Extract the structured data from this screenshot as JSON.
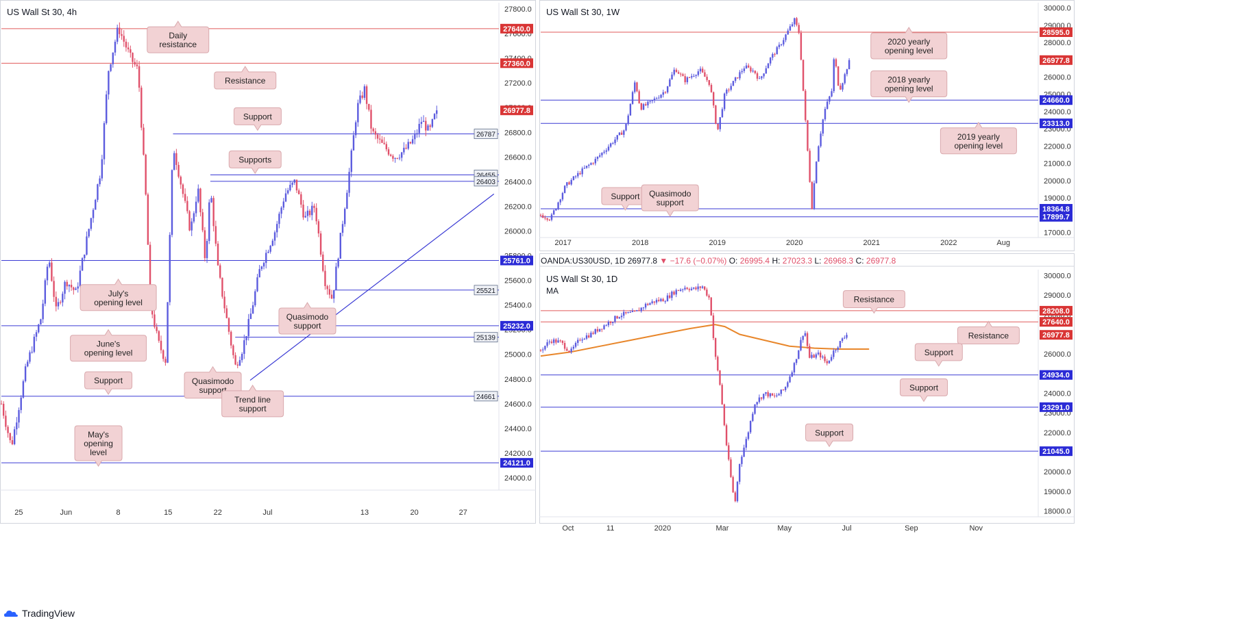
{
  "branding": {
    "name": "TradingView",
    "logo_icon": "tradingview-cloud-icon"
  },
  "colors": {
    "up_candle": "#5b5bde",
    "down_candle": "#e0506a",
    "support_line": "#3a3ad4",
    "resistance_line": "#e05a5a",
    "ma_line": "#e8862a",
    "support_badge": "#2b2bd6",
    "resistance_badge": "#d93535",
    "price_badge": "#d93535",
    "callout_fill": "#f2d2d4",
    "callout_border": "#d9a9ad",
    "gray_badge_fill": "#eef0f5",
    "axis_text": "#333333"
  },
  "chart_data": [
    {
      "id": "h4",
      "type": "candlestick",
      "title": "US Wall St 30, 4h",
      "ylim": [
        23900,
        27850
      ],
      "y_ticks": [
        24000,
        24200,
        24400,
        24600,
        24800,
        25000,
        25200,
        25400,
        25600,
        25800,
        26000,
        26200,
        26400,
        26600,
        26800,
        27000,
        27200,
        27400,
        27600,
        27800
      ],
      "x_ticks": [
        {
          "label": "25",
          "t": 0.035
        },
        {
          "label": "Jun",
          "t": 0.13
        },
        {
          "label": "8",
          "t": 0.235
        },
        {
          "label": "15",
          "t": 0.335
        },
        {
          "label": "22",
          "t": 0.435
        },
        {
          "label": "Jul",
          "t": 0.535
        },
        {
          "label": "13",
          "t": 0.73
        },
        {
          "label": "20",
          "t": 0.83
        },
        {
          "label": "27",
          "t": 0.928
        }
      ],
      "price_path": [
        [
          0.0,
          24600
        ],
        [
          0.02,
          24250
        ],
        [
          0.05,
          24900
        ],
        [
          0.08,
          25300
        ],
        [
          0.095,
          25800
        ],
        [
          0.11,
          25350
        ],
        [
          0.13,
          25600
        ],
        [
          0.15,
          25500
        ],
        [
          0.175,
          26000
        ],
        [
          0.2,
          26500
        ],
        [
          0.215,
          27300
        ],
        [
          0.235,
          27650
        ],
        [
          0.26,
          27400
        ],
        [
          0.275,
          27300
        ],
        [
          0.29,
          26300
        ],
        [
          0.3,
          25400
        ],
        [
          0.315,
          25100
        ],
        [
          0.33,
          24950
        ],
        [
          0.345,
          26700
        ],
        [
          0.36,
          26400
        ],
        [
          0.38,
          26000
        ],
        [
          0.395,
          26350
        ],
        [
          0.41,
          25750
        ],
        [
          0.42,
          26350
        ],
        [
          0.435,
          25700
        ],
        [
          0.45,
          25350
        ],
        [
          0.47,
          24900
        ],
        [
          0.485,
          25050
        ],
        [
          0.5,
          25300
        ],
        [
          0.52,
          25700
        ],
        [
          0.55,
          26000
        ],
        [
          0.57,
          26300
        ],
        [
          0.59,
          26400
        ],
        [
          0.61,
          26100
        ],
        [
          0.63,
          26200
        ],
        [
          0.65,
          25600
        ],
        [
          0.665,
          25450
        ],
        [
          0.68,
          25900
        ],
        [
          0.7,
          26500
        ],
        [
          0.715,
          27000
        ],
        [
          0.73,
          27150
        ],
        [
          0.745,
          26800
        ],
        [
          0.765,
          26700
        ],
        [
          0.79,
          26600
        ],
        [
          0.81,
          26650
        ],
        [
          0.83,
          26750
        ],
        [
          0.845,
          26900
        ],
        [
          0.86,
          26800
        ],
        [
          0.875,
          26977.8
        ]
      ],
      "hlines": [
        {
          "value": 27640,
          "label": "27640.0",
          "kind": "resistance",
          "x_start": 0.0
        },
        {
          "value": 27360,
          "label": "27360.0",
          "kind": "resistance",
          "x_start": 0.0
        },
        {
          "value": 26787,
          "label": "26787",
          "kind": "support",
          "x_start": 0.345
        },
        {
          "value": 26455,
          "label": "26455",
          "kind": "support",
          "x_start": 0.42
        },
        {
          "value": 26403,
          "label": "26403",
          "kind": "support",
          "x_start": 0.42
        },
        {
          "value": 25761,
          "label": "25761.0",
          "kind": "support",
          "x_start": 0.0
        },
        {
          "value": 25521,
          "label": "25521",
          "kind": "support",
          "x_start": 0.67
        },
        {
          "value": 25232,
          "label": "25232.0",
          "kind": "support",
          "x_start": 0.0
        },
        {
          "value": 25139,
          "label": "25139",
          "kind": "support",
          "x_start": 0.47
        },
        {
          "value": 24661,
          "label": "24661",
          "kind": "support",
          "x_start": 0.0
        },
        {
          "value": 24121,
          "label": "24121.0",
          "kind": "support",
          "x_start": 0.0
        }
      ],
      "price_label": "26977.8",
      "trendline": {
        "x1": 0.5,
        "y1": 24790,
        "x2": 0.99,
        "y2": 26300
      },
      "annotations": [
        {
          "text": [
            "Daily",
            "resistance"
          ],
          "x": 0.355,
          "value": 27550,
          "pointer": "up"
        },
        {
          "text": [
            "Resistance"
          ],
          "x": 0.49,
          "value": 27220,
          "pointer": "up"
        },
        {
          "text": [
            "Support"
          ],
          "x": 0.515,
          "value": 26930,
          "pointer": "down"
        },
        {
          "text": [
            "Supports"
          ],
          "x": 0.51,
          "value": 26580,
          "pointer": "down"
        },
        {
          "text": [
            "July's",
            "opening level"
          ],
          "x": 0.235,
          "value": 25460,
          "pointer": "up"
        },
        {
          "text": [
            "Quasimodo",
            "support"
          ],
          "x": 0.615,
          "value": 25270,
          "pointer": "up"
        },
        {
          "text": [
            "June's",
            "opening level"
          ],
          "x": 0.215,
          "value": 25050,
          "pointer": "up"
        },
        {
          "text": [
            "Quasimodo",
            "support"
          ],
          "x": 0.425,
          "value": 24750,
          "pointer": "up"
        },
        {
          "text": [
            "Support"
          ],
          "x": 0.215,
          "value": 24790,
          "pointer": "down"
        },
        {
          "text": [
            "Trend line",
            "support"
          ],
          "x": 0.505,
          "value": 24600,
          "pointer": "up"
        },
        {
          "text": [
            "May's",
            "opening",
            "level"
          ],
          "x": 0.195,
          "value": 24280,
          "pointer": "down"
        }
      ]
    },
    {
      "id": "w1",
      "type": "candlestick",
      "title": "US Wall St 30, 1W",
      "ylim": [
        16700,
        30300
      ],
      "y_ticks": [
        17000,
        18000,
        19000,
        20000,
        21000,
        22000,
        23000,
        24000,
        25000,
        26000,
        27000,
        28000,
        29000,
        30000
      ],
      "x_ticks": [
        {
          "label": "2017",
          "t": 0.045
        },
        {
          "label": "2018",
          "t": 0.2
        },
        {
          "label": "2019",
          "t": 0.355
        },
        {
          "label": "2020",
          "t": 0.51
        },
        {
          "label": "2021",
          "t": 0.665
        },
        {
          "label": "2022",
          "t": 0.82
        },
        {
          "label": "Aug",
          "t": 0.93
        }
      ],
      "price_path": [
        [
          0.0,
          18000
        ],
        [
          0.02,
          17800
        ],
        [
          0.05,
          19700
        ],
        [
          0.08,
          20500
        ],
        [
          0.11,
          21200
        ],
        [
          0.14,
          22100
        ],
        [
          0.17,
          23000
        ],
        [
          0.19,
          25800
        ],
        [
          0.2,
          24200
        ],
        [
          0.22,
          24500
        ],
        [
          0.25,
          25200
        ],
        [
          0.27,
          26500
        ],
        [
          0.29,
          25800
        ],
        [
          0.32,
          26400
        ],
        [
          0.34,
          25600
        ],
        [
          0.355,
          22800
        ],
        [
          0.37,
          25000
        ],
        [
          0.39,
          25800
        ],
        [
          0.41,
          26600
        ],
        [
          0.43,
          26300
        ],
        [
          0.44,
          25800
        ],
        [
          0.46,
          27000
        ],
        [
          0.48,
          27800
        ],
        [
          0.5,
          28800
        ],
        [
          0.51,
          29300
        ],
        [
          0.52,
          28500
        ],
        [
          0.53,
          24200
        ],
        [
          0.545,
          18400
        ],
        [
          0.555,
          21500
        ],
        [
          0.57,
          24000
        ],
        [
          0.585,
          25200
        ],
        [
          0.59,
          27300
        ],
        [
          0.6,
          25200
        ],
        [
          0.61,
          26000
        ],
        [
          0.62,
          26977.8
        ]
      ],
      "hlines": [
        {
          "value": 28595,
          "label": "28595.0",
          "kind": "resistance",
          "x_start": 0.0
        },
        {
          "value": 24660,
          "label": "24660.0",
          "kind": "support",
          "x_start": 0.0
        },
        {
          "value": 23313,
          "label": "23313.0",
          "kind": "support",
          "x_start": 0.0
        },
        {
          "value": 18364.8,
          "label": "18364.8",
          "kind": "support",
          "x_start": 0.0
        },
        {
          "value": 17899.7,
          "label": "17899.7",
          "kind": "support",
          "x_start": 0.0
        }
      ],
      "price_label": "26977.8",
      "annotations": [
        {
          "text": [
            "2020 yearly",
            "opening level"
          ],
          "x": 0.74,
          "value": 27800,
          "pointer": "up"
        },
        {
          "text": [
            "2018 yearly",
            "opening level"
          ],
          "x": 0.74,
          "value": 25600,
          "pointer": "down"
        },
        {
          "text": [
            "2019 yearly",
            "opening level"
          ],
          "x": 0.88,
          "value": 22300,
          "pointer": "up"
        },
        {
          "text": [
            "Support"
          ],
          "x": 0.17,
          "value": 19100,
          "pointer": "down"
        },
        {
          "text": [
            "Quasimodo",
            "support"
          ],
          "x": 0.26,
          "value": 19000,
          "pointer": "down"
        }
      ]
    },
    {
      "id": "d1",
      "type": "candlestick",
      "title": "US Wall St 30, 1D",
      "series_label": "MA",
      "info_bar": {
        "symbol": "OANDA:US30USD, 1D",
        "price": "26977.8",
        "change": "−17.6 (−0.07%)",
        "o_label": "O:",
        "o": "26995.4",
        "h_label": "H:",
        "h": "27023.3",
        "l_label": "L:",
        "l": "26968.3",
        "c_label": "C:",
        "c": "26977.8"
      },
      "ylim": [
        17700,
        30300
      ],
      "y_ticks": [
        18000,
        19000,
        20000,
        21000,
        22000,
        23000,
        24000,
        25000,
        26000,
        27000,
        28000,
        29000,
        30000
      ],
      "x_ticks": [
        {
          "label": "Oct",
          "t": 0.055
        },
        {
          "label": "11",
          "t": 0.14
        },
        {
          "label": "2020",
          "t": 0.245
        },
        {
          "label": "Mar",
          "t": 0.365
        },
        {
          "label": "May",
          "t": 0.49
        },
        {
          "label": "Jul",
          "t": 0.615
        },
        {
          "label": "Sep",
          "t": 0.745
        },
        {
          "label": "Nov",
          "t": 0.875
        }
      ],
      "price_path": [
        [
          0.0,
          26200
        ],
        [
          0.02,
          26700
        ],
        [
          0.04,
          26600
        ],
        [
          0.06,
          26100
        ],
        [
          0.08,
          26800
        ],
        [
          0.1,
          27000
        ],
        [
          0.13,
          27500
        ],
        [
          0.16,
          28000
        ],
        [
          0.19,
          28100
        ],
        [
          0.21,
          28500
        ],
        [
          0.23,
          28700
        ],
        [
          0.25,
          28800
        ],
        [
          0.27,
          29200
        ],
        [
          0.29,
          29400
        ],
        [
          0.31,
          29300
        ],
        [
          0.325,
          29450
        ],
        [
          0.34,
          28800
        ],
        [
          0.35,
          26000
        ],
        [
          0.36,
          24500
        ],
        [
          0.375,
          21000
        ],
        [
          0.39,
          18300
        ],
        [
          0.4,
          20500
        ],
        [
          0.415,
          21800
        ],
        [
          0.43,
          23500
        ],
        [
          0.45,
          24000
        ],
        [
          0.47,
          23800
        ],
        [
          0.49,
          24200
        ],
        [
          0.51,
          25500
        ],
        [
          0.53,
          27300
        ],
        [
          0.54,
          25800
        ],
        [
          0.56,
          26000
        ],
        [
          0.575,
          25500
        ],
        [
          0.59,
          26200
        ],
        [
          0.605,
          26700
        ],
        [
          0.615,
          26977.8
        ]
      ],
      "ma_path": [
        [
          0.0,
          25900
        ],
        [
          0.06,
          26100
        ],
        [
          0.12,
          26400
        ],
        [
          0.18,
          26700
        ],
        [
          0.24,
          27000
        ],
        [
          0.3,
          27300
        ],
        [
          0.35,
          27500
        ],
        [
          0.37,
          27400
        ],
        [
          0.4,
          27000
        ],
        [
          0.45,
          26700
        ],
        [
          0.5,
          26400
        ],
        [
          0.55,
          26300
        ],
        [
          0.6,
          26250
        ],
        [
          0.66,
          26250
        ]
      ],
      "hlines": [
        {
          "value": 28208,
          "label": "28208.0",
          "kind": "resistance",
          "x_start": 0.0
        },
        {
          "value": 27640,
          "label": "27640.0",
          "kind": "resistance",
          "x_start": 0.0
        },
        {
          "value": 24934,
          "label": "24934.0",
          "kind": "support",
          "x_start": 0.0
        },
        {
          "value": 23291,
          "label": "23291.0",
          "kind": "support",
          "x_start": 0.0
        },
        {
          "value": 21045,
          "label": "21045.0",
          "kind": "support",
          "x_start": 0.0
        }
      ],
      "price_label": "26977.8",
      "annotations": [
        {
          "text": [
            "Resistance"
          ],
          "x": 0.67,
          "value": 28800,
          "pointer": "down"
        },
        {
          "text": [
            "Resistance"
          ],
          "x": 0.9,
          "value": 26950,
          "pointer": "up"
        },
        {
          "text": [
            "Support"
          ],
          "x": 0.8,
          "value": 26100,
          "pointer": "down"
        },
        {
          "text": [
            "Support"
          ],
          "x": 0.77,
          "value": 24300,
          "pointer": "down"
        },
        {
          "text": [
            "Support"
          ],
          "x": 0.58,
          "value": 22000,
          "pointer": "down"
        }
      ]
    }
  ]
}
